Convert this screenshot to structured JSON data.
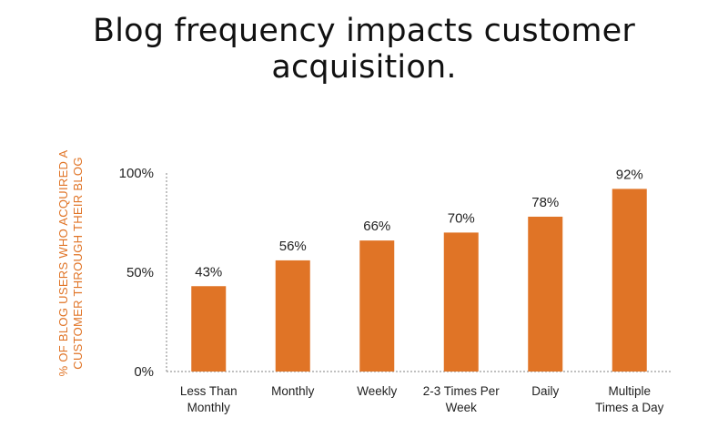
{
  "title": "Blog frequency impacts customer acquisition.",
  "colors": {
    "bar": "#e07426",
    "axis_label": "#e07426",
    "text": "#222222"
  },
  "chart_data": {
    "type": "bar",
    "title": "Blog frequency impacts customer acquisition.",
    "categories": [
      [
        "Less Than",
        "Monthly"
      ],
      [
        "Monthly"
      ],
      [
        "Weekly"
      ],
      [
        "2-3 Times Per",
        "Week"
      ],
      [
        "Daily"
      ],
      [
        "Multiple",
        "Times a Day"
      ]
    ],
    "values": [
      43,
      56,
      66,
      70,
      78,
      92
    ],
    "value_labels": [
      "43%",
      "56%",
      "66%",
      "70%",
      "78%",
      "92%"
    ],
    "ylabel": [
      "% OF BLOG USERS WHO ACQUIRED A",
      "CUSTOMER THROUGH THEIR BLOG"
    ],
    "ylim": [
      0,
      100
    ],
    "yticks": [
      {
        "value": 0,
        "label": "0%"
      },
      {
        "value": 50,
        "label": "50%"
      },
      {
        "value": 100,
        "label": "100%"
      }
    ],
    "grid": false,
    "legend": "none"
  }
}
